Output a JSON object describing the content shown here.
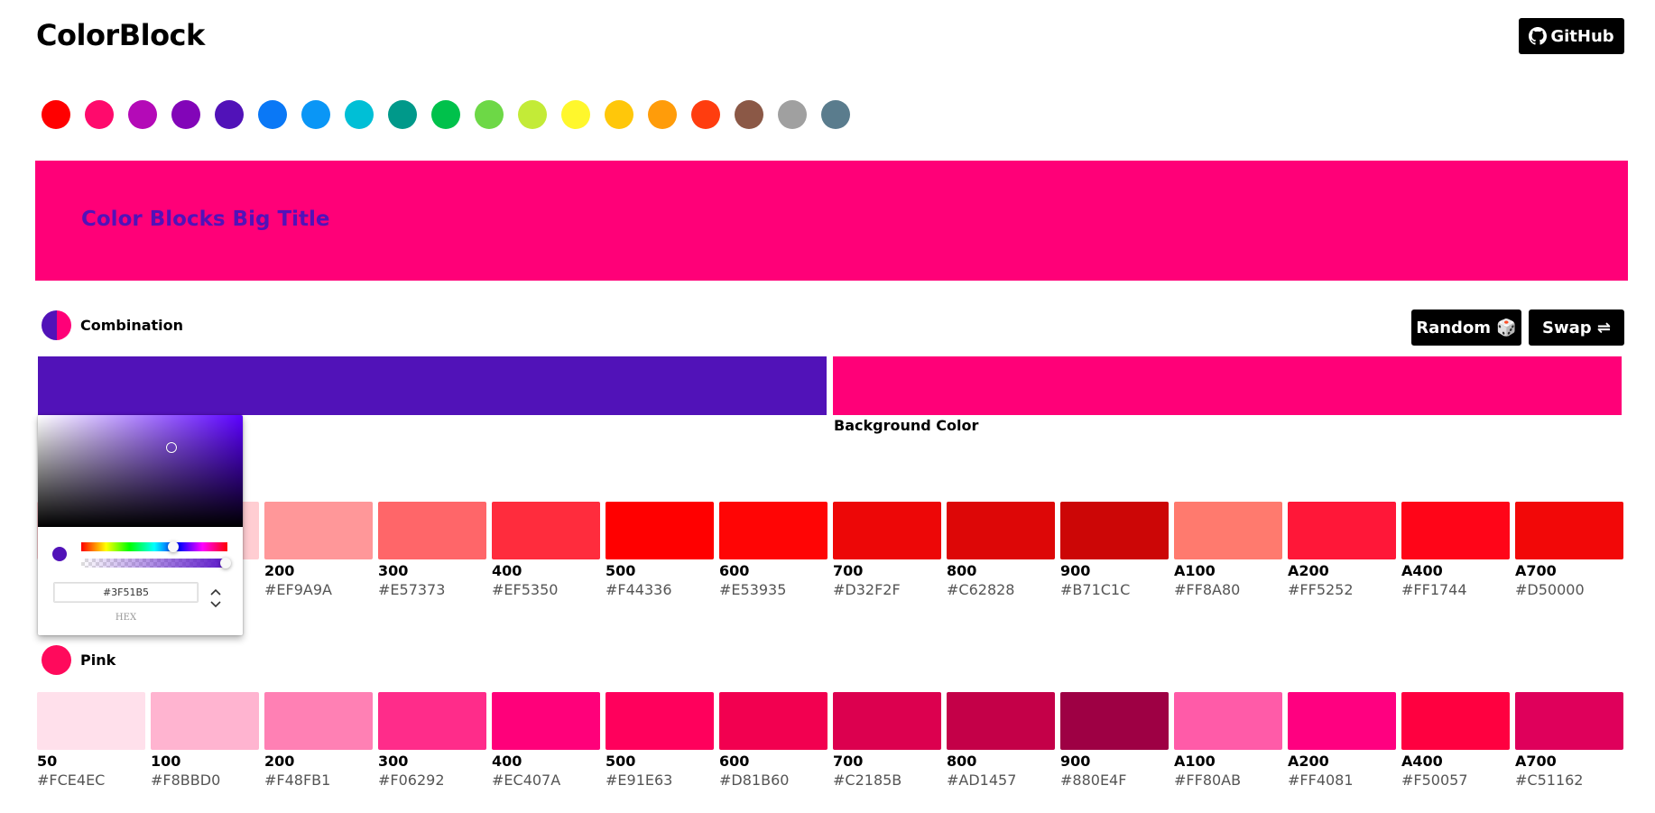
{
  "app": {
    "logo": "ColorBlock",
    "github_label": "GitHub"
  },
  "swatches": [
    {
      "name": "red",
      "color": "#FF0000"
    },
    {
      "name": "pink",
      "color": "#FF0A6C"
    },
    {
      "name": "purple",
      "color": "#B40AB7"
    },
    {
      "name": "deep-purple",
      "color": "#8205B8"
    },
    {
      "name": "indigo",
      "color": "#5112B8"
    },
    {
      "name": "blue",
      "color": "#0A78F6"
    },
    {
      "name": "light-blue",
      "color": "#0A96F6"
    },
    {
      "name": "cyan",
      "color": "#00BFD6"
    },
    {
      "name": "teal",
      "color": "#00998A"
    },
    {
      "name": "green",
      "color": "#00C14B"
    },
    {
      "name": "light-green",
      "color": "#6DD846"
    },
    {
      "name": "lime",
      "color": "#C3EB37"
    },
    {
      "name": "yellow",
      "color": "#FFF72C"
    },
    {
      "name": "amber",
      "color": "#FFC70A"
    },
    {
      "name": "orange",
      "color": "#FF9C0A"
    },
    {
      "name": "deep-orange",
      "color": "#FF3D0F"
    },
    {
      "name": "brown",
      "color": "#8B5846"
    },
    {
      "name": "grey",
      "color": "#A0A0A0"
    },
    {
      "name": "blue-grey",
      "color": "#5A7C8D"
    }
  ],
  "banner": {
    "title": "Color Blocks Big Title",
    "background": "#FF0078",
    "text_color": "#5112B8"
  },
  "combination": {
    "label": "Combination",
    "random_label": "Random 🎲",
    "swap_label": "Swap ⇌",
    "text_color": "#5112B8",
    "background_color": "#FF0078",
    "background_caption": "Background Color"
  },
  "picker": {
    "hex_value": "#3F51B5",
    "hex_label": "HEX",
    "preview_color": "#5112B8"
  },
  "red_palette": {
    "shades": [
      {
        "shade": "",
        "hex": "",
        "color": "#FFCDD2"
      },
      {
        "shade": "",
        "hex": "",
        "color": "#FFCDD2"
      },
      {
        "shade": "200",
        "hex": "#EF9A9A",
        "color": "#FF9799"
      },
      {
        "shade": "300",
        "hex": "#E57373",
        "color": "#FF6669"
      },
      {
        "shade": "400",
        "hex": "#EF5350",
        "color": "#FF2C3D"
      },
      {
        "shade": "500",
        "hex": "#F44336",
        "color": "#FF0000"
      },
      {
        "shade": "600",
        "hex": "#E53935",
        "color": "#FF0505"
      },
      {
        "shade": "700",
        "hex": "#D32F2F",
        "color": "#ED0707"
      },
      {
        "shade": "800",
        "hex": "#C62828",
        "color": "#DD0707"
      },
      {
        "shade": "900",
        "hex": "#B71C1C",
        "color": "#CC0606"
      },
      {
        "shade": "A100",
        "hex": "#FF8A80",
        "color": "#FF7A6E"
      },
      {
        "shade": "A200",
        "hex": "#FF5252",
        "color": "#FF1738"
      },
      {
        "shade": "A400",
        "hex": "#FF1744",
        "color": "#FF0518"
      },
      {
        "shade": "A700",
        "hex": "#D50000",
        "color": "#F20808"
      }
    ]
  },
  "pink_palette": {
    "label": "Pink",
    "dot_color": "#FF0A5C",
    "shades": [
      {
        "shade": "50",
        "hex": "#FCE4EC",
        "color": "#FFE0EB"
      },
      {
        "shade": "100",
        "hex": "#F8BBD0",
        "color": "#FFB4D0"
      },
      {
        "shade": "200",
        "hex": "#F48FB1",
        "color": "#FF80B4"
      },
      {
        "shade": "300",
        "hex": "#F06292",
        "color": "#FF2C8A"
      },
      {
        "shade": "400",
        "hex": "#EC407A",
        "color": "#FF007A"
      },
      {
        "shade": "500",
        "hex": "#E91E63",
        "color": "#FF005C"
      },
      {
        "shade": "600",
        "hex": "#D81B60",
        "color": "#F20050"
      },
      {
        "shade": "700",
        "hex": "#C2185B",
        "color": "#DC004F"
      },
      {
        "shade": "800",
        "hex": "#AD1457",
        "color": "#C40048"
      },
      {
        "shade": "900",
        "hex": "#880E4F",
        "color": "#9E0044"
      },
      {
        "shade": "A100",
        "hex": "#FF80AB",
        "color": "#FF5BA8"
      },
      {
        "shade": "A200",
        "hex": "#FF4081",
        "color": "#FF0080"
      },
      {
        "shade": "A400",
        "hex": "#F50057",
        "color": "#FF0040"
      },
      {
        "shade": "A700",
        "hex": "#C51162",
        "color": "#DF005B"
      }
    ]
  }
}
